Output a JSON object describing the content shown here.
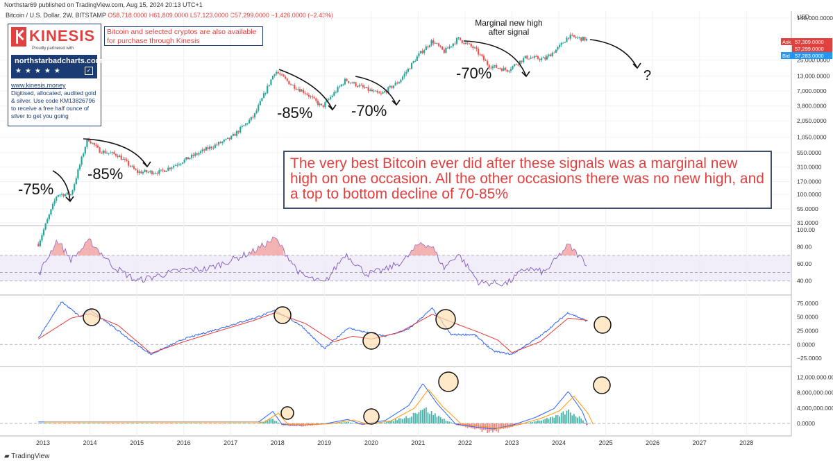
{
  "header": {
    "text": "Northstar69 published on TradingView.com, Aug 15, 2024 20:13 UTC+1"
  },
  "symbol_line": {
    "name": "Bitcoin / U.S. Dollar, 2W, BITSTAMP",
    "ohlc": "O58,718.0000  H61,809.0000  L57,123.0000  C57,299.0000  −1,426.0000 (−2.43%)"
  },
  "price_axis": {
    "currency": "USD",
    "ticks": [
      "140,000.0000",
      "25,000.0000",
      "13,000.0000",
      "7,000.0000",
      "3,800.0000",
      "2,050.0000",
      "1,050.0000",
      "550.0000",
      "310.0000",
      "170.0000",
      "100.0000",
      "55.0000",
      "31.0000"
    ],
    "ask": {
      "label": "Ask",
      "value": "57,309.0000"
    },
    "last": "57,299.0000",
    "bid": {
      "label": "Bid",
      "value": "57,283.0000"
    }
  },
  "rsi_axis": {
    "ticks": [
      "100.00",
      "80.00",
      "60.00",
      "40.00"
    ]
  },
  "momentum_axis": {
    "ticks": [
      "75.0000",
      "50.0000",
      "25.0000",
      "0.0000",
      "−25.0000"
    ]
  },
  "macd_axis": {
    "ticks": [
      "12,000,000.0000",
      "8,000,000.0000",
      "4,000,000.0000",
      "0.0000"
    ]
  },
  "time_axis": {
    "ticks": [
      "2013",
      "2014",
      "2015",
      "2016",
      "2017",
      "2018",
      "2019",
      "2020",
      "2021",
      "2022",
      "2023",
      "2024",
      "2025",
      "2026",
      "2027",
      "2028"
    ]
  },
  "kinesis": {
    "brand": "KINESIS",
    "tagline": "Proudly partnered with",
    "partner_site": "northstarbadcharts.com",
    "stars": "★★★★★",
    "site": "www.kinesis.money",
    "description": "Digitised, allocated, audited gold & silver. Use code KM13826796 to receive a free half ounce of silver to get you going"
  },
  "promo_text": "Bitcoin and selected cryptos are also available for purchase through Kinesis",
  "annotations": {
    "pct_1": "-75%",
    "pct_2": "-85%",
    "pct_3": "-85%",
    "pct_4": "-70%",
    "pct_5": "-70%",
    "marginal": "Marginal new high after signal",
    "question": "?"
  },
  "big_text": "The very best Bitcoin ever did after these signals was a marginal new high on one occasion. All the other occasions there was no new high, and a top to bottom decline of 70-85%",
  "footer_logo": "TradingView",
  "colors": {
    "up": "#26a69a",
    "down": "#ef5350",
    "rsi": "#7e57c2",
    "macd": "#2962ff",
    "signal": "#e53935",
    "orange": "#ff9800",
    "annotation_red": "#e0413f",
    "brand_blue": "#1a3b73"
  },
  "chart_data": [
    {
      "type": "candlestick",
      "scale": "log",
      "x_unit": "year",
      "x": [
        2012.9,
        2013.3,
        2013.6,
        2013.95,
        2014.2,
        2014.6,
        2015.0,
        2015.5,
        2016.0,
        2016.5,
        2017.0,
        2017.5,
        2017.95,
        2018.3,
        2018.6,
        2018.95,
        2019.45,
        2019.9,
        2020.2,
        2020.6,
        2021.0,
        2021.3,
        2021.55,
        2021.85,
        2022.2,
        2022.5,
        2022.9,
        2023.3,
        2023.7,
        2024.0,
        2024.2,
        2024.62
      ],
      "close": [
        13,
        100,
        100,
        1000,
        600,
        500,
        250,
        250,
        400,
        650,
        1000,
        2500,
        16000,
        9000,
        6500,
        3600,
        11000,
        7500,
        6000,
        10500,
        30000,
        55000,
        35000,
        60000,
        40000,
        20000,
        16500,
        28000,
        26000,
        42000,
        66000,
        57299
      ],
      "ylim": [
        31,
        140000
      ]
    },
    {
      "type": "line",
      "name": "RSI",
      "x": [
        2012.9,
        2013.3,
        2013.6,
        2014.0,
        2014.5,
        2015.0,
        2015.5,
        2016.0,
        2016.5,
        2017.0,
        2017.5,
        2017.95,
        2018.5,
        2019.0,
        2019.45,
        2019.9,
        2020.3,
        2020.7,
        2021.05,
        2021.3,
        2021.55,
        2021.85,
        2022.3,
        2022.9,
        2023.3,
        2023.7,
        2024.2,
        2024.62
      ],
      "y": [
        47,
        88,
        65,
        87,
        57,
        40,
        47,
        53,
        54,
        64,
        75,
        90,
        47,
        37,
        72,
        48,
        53,
        64,
        85,
        80,
        55,
        72,
        38,
        37,
        55,
        50,
        82,
        59
      ],
      "ylim": [
        30,
        100
      ],
      "band": [
        40,
        70
      ]
    },
    {
      "type": "line",
      "name": "Momentum",
      "series": [
        {
          "name": "fast",
          "x": [
            2012.9,
            2013.4,
            2013.8,
            2014.0,
            2014.3,
            2014.8,
            2015.3,
            2016.0,
            2016.8,
            2017.5,
            2017.95,
            2018.5,
            2019.0,
            2019.5,
            2019.9,
            2020.3,
            2020.8,
            2021.3,
            2021.7,
            2022.2,
            2022.6,
            2023.0,
            2023.6,
            2024.2,
            2024.62
          ],
          "y": [
            12,
            78,
            50,
            63,
            45,
            12,
            -18,
            10,
            30,
            48,
            62,
            35,
            -8,
            30,
            22,
            15,
            28,
            66,
            18,
            18,
            -12,
            -18,
            15,
            58,
            42
          ]
        },
        {
          "name": "slow",
          "x": [
            2012.9,
            2013.6,
            2014.0,
            2014.6,
            2015.3,
            2016.0,
            2016.8,
            2017.5,
            2017.95,
            2018.6,
            2019.2,
            2019.6,
            2020.0,
            2020.6,
            2021.3,
            2021.8,
            2022.3,
            2022.7,
            2023.0,
            2023.6,
            2024.2,
            2024.62
          ],
          "y": [
            10,
            48,
            56,
            35,
            -16,
            5,
            26,
            44,
            58,
            38,
            5,
            15,
            10,
            22,
            55,
            38,
            22,
            8,
            -15,
            5,
            48,
            44
          ]
        }
      ],
      "ylim": [
        -30,
        80
      ]
    },
    {
      "type": "bar",
      "name": "MACD histogram",
      "x": [
        2017.6,
        2017.9,
        2018.1,
        2018.5,
        2019.0,
        2019.5,
        2019.8,
        2020.3,
        2020.8,
        2021.1,
        2021.4,
        2021.8,
        2022.2,
        2022.6,
        2023.0,
        2023.5,
        2023.9,
        2024.2,
        2024.5,
        2024.62
      ],
      "values": [
        150000,
        1200000,
        -500000,
        -700000,
        -200000,
        400000,
        -400000,
        300000,
        1800000,
        4000000,
        2000000,
        -300000,
        -1500000,
        -2400000,
        -800000,
        600000,
        1500000,
        3200000,
        1200000,
        -900000
      ],
      "ylim": [
        -3500000,
        13000000
      ]
    }
  ]
}
